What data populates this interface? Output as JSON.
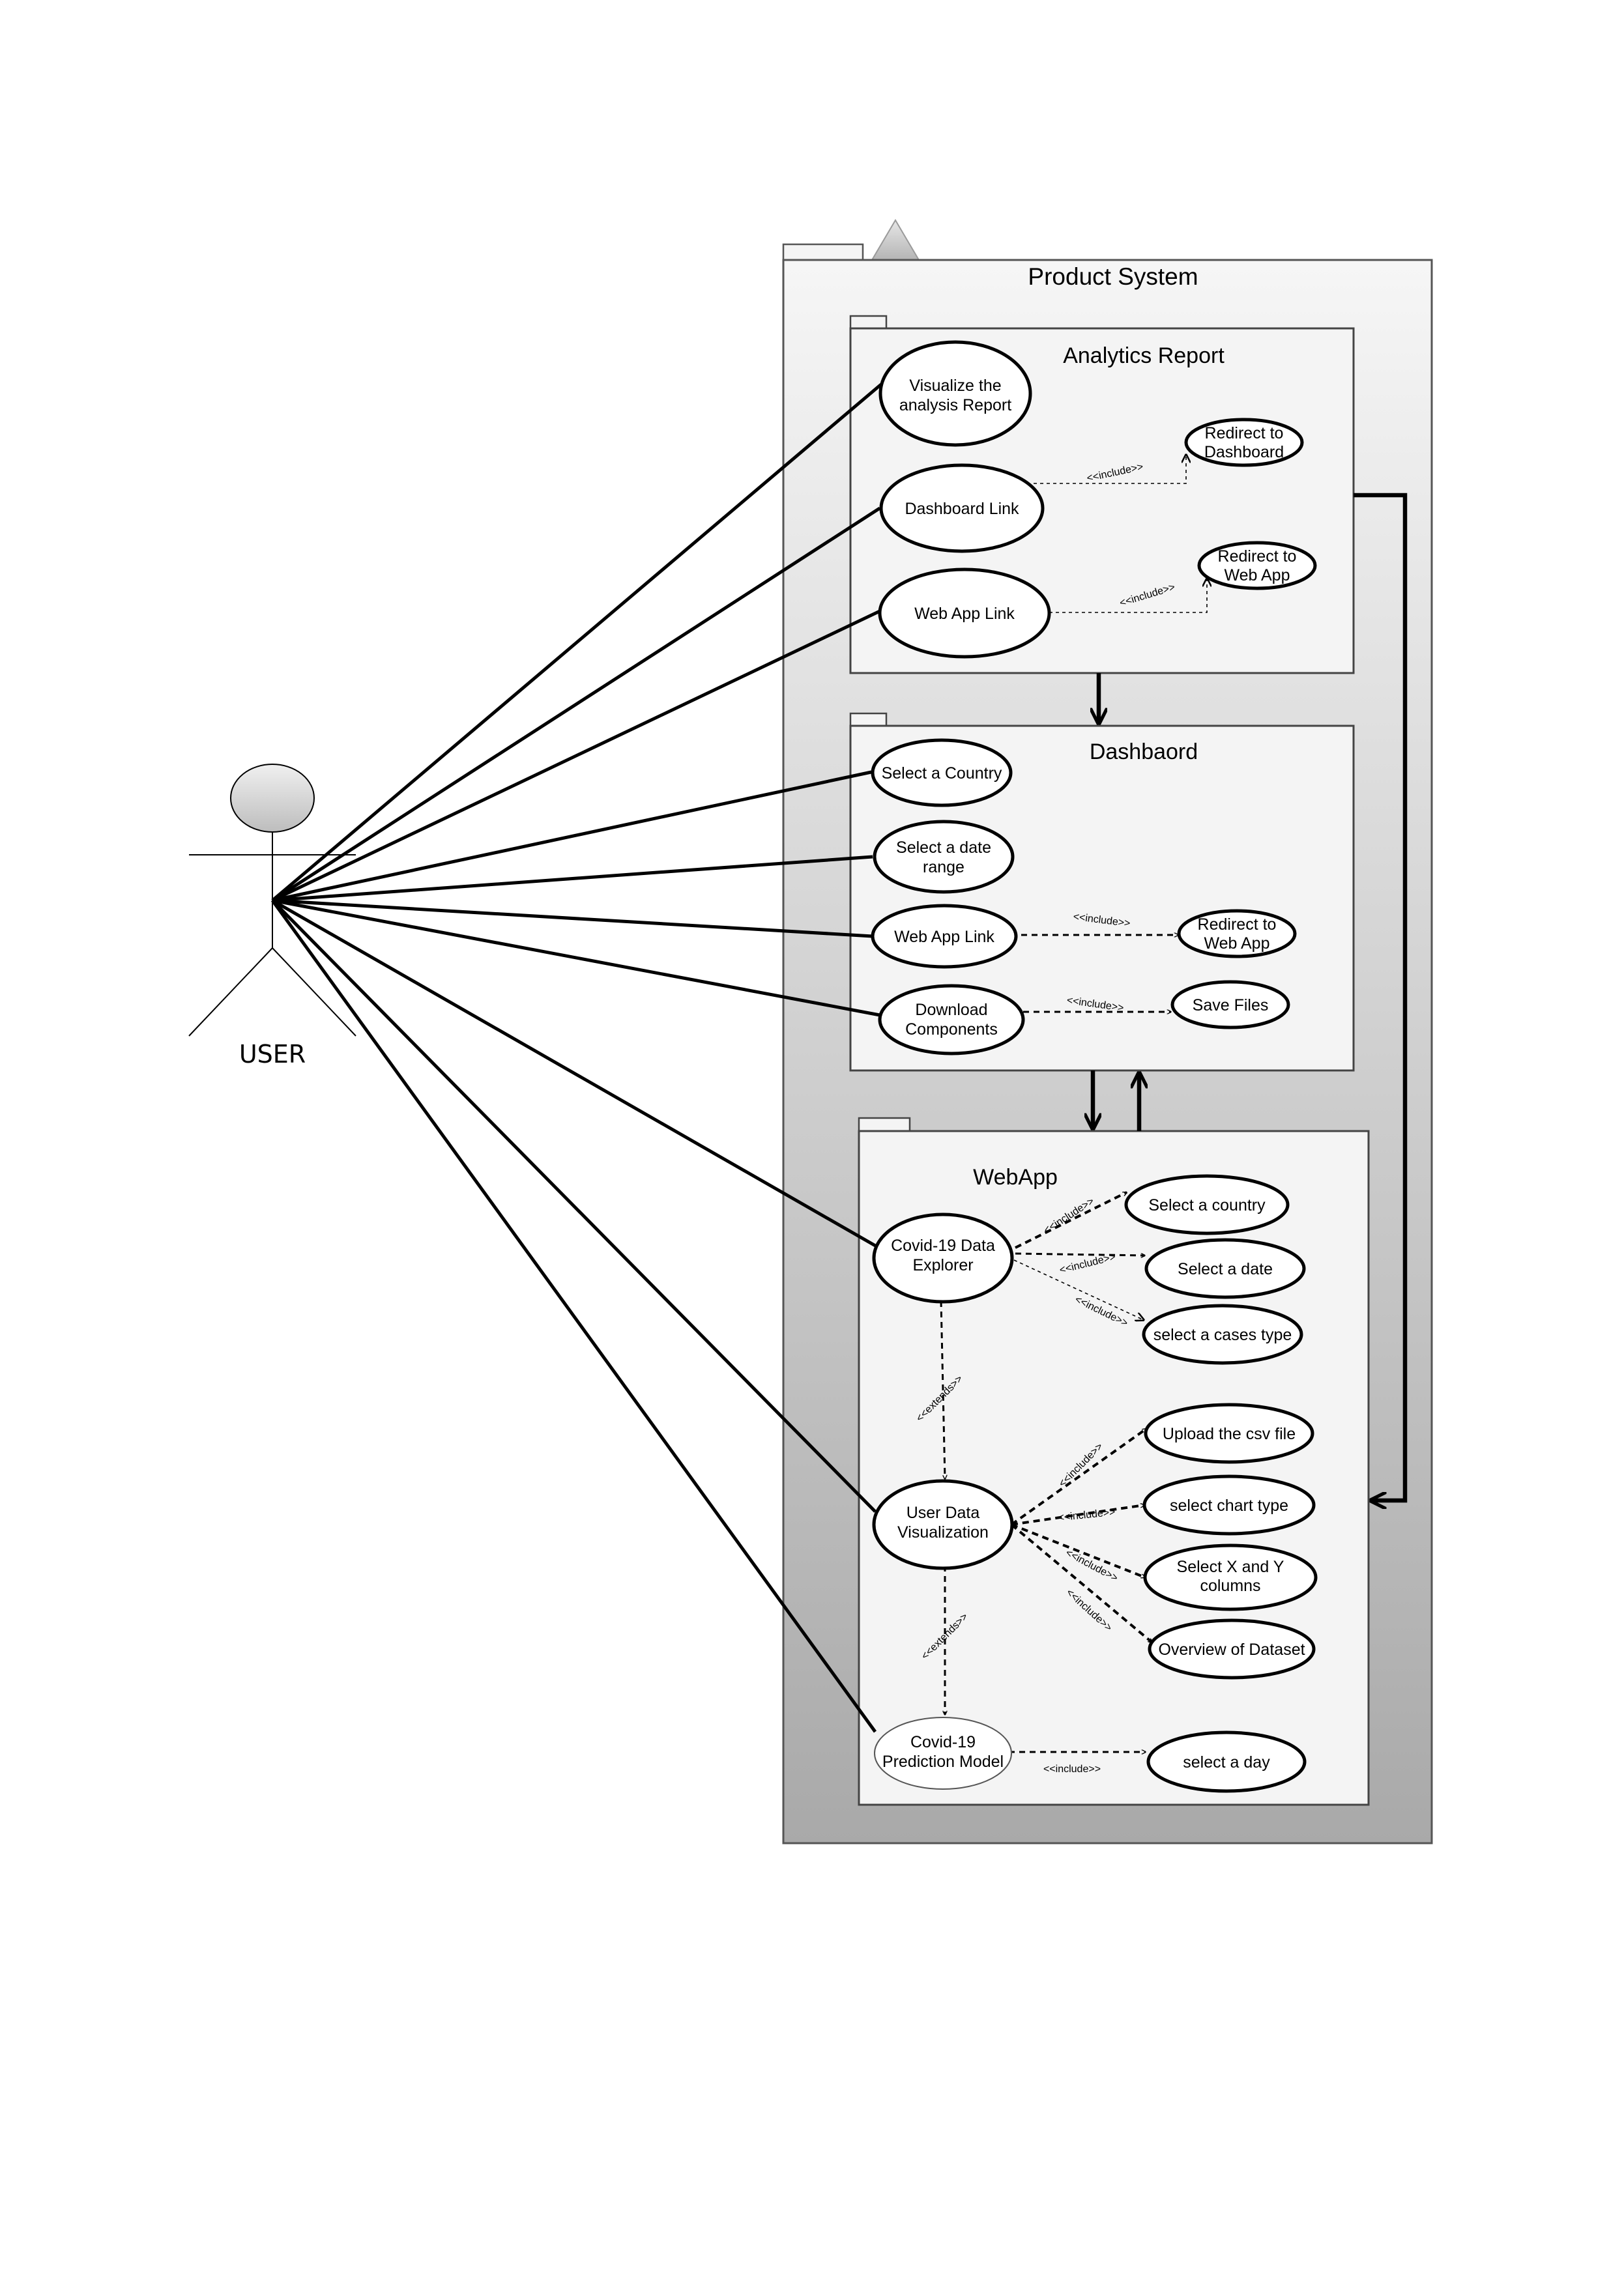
{
  "actor": {
    "name": "USER"
  },
  "system": {
    "title": "Product System"
  },
  "packages": {
    "analytics": {
      "title": "Analytics Report"
    },
    "dashboard": {
      "title": "Dashbaord"
    },
    "webapp": {
      "title": "WebApp"
    }
  },
  "use_cases": {
    "visualize_report": [
      "Visualize the",
      "analysis Report"
    ],
    "dashboard_link": [
      "Dashboard Link"
    ],
    "ar_web_app_link": [
      "Web App Link"
    ],
    "redirect_dashboard": [
      "Redirect to",
      "Dashboard"
    ],
    "ar_redirect_web_app": [
      "Redirect to",
      "Web App"
    ],
    "select_country_db": [
      "Select a Country"
    ],
    "select_date_range": [
      "Select a date",
      "range"
    ],
    "db_web_app_link": [
      "Web App Link"
    ],
    "download_components": [
      "Download",
      "Components"
    ],
    "db_redirect_web_app": [
      "Redirect to",
      "Web App"
    ],
    "save_files": [
      "Save Files"
    ],
    "data_explorer": [
      "Covid-19 Data",
      "Explorer"
    ],
    "select_country_wa": [
      "Select a country"
    ],
    "select_date": [
      "Select a date"
    ],
    "select_cases_type": [
      "select a cases type"
    ],
    "user_data_viz": [
      "User Data",
      "Visualization"
    ],
    "upload_csv": [
      "Upload the csv file"
    ],
    "select_chart_type": [
      "select chart type"
    ],
    "select_xy": [
      "Select X and Y",
      "columns"
    ],
    "overview_dataset": [
      "Overview of Dataset"
    ],
    "prediction_model": [
      "Covid-19",
      "Prediction Model"
    ],
    "select_day": [
      "select a day"
    ]
  },
  "stereotypes": {
    "include": "<<include>>",
    "extends": "<<extends>>"
  }
}
